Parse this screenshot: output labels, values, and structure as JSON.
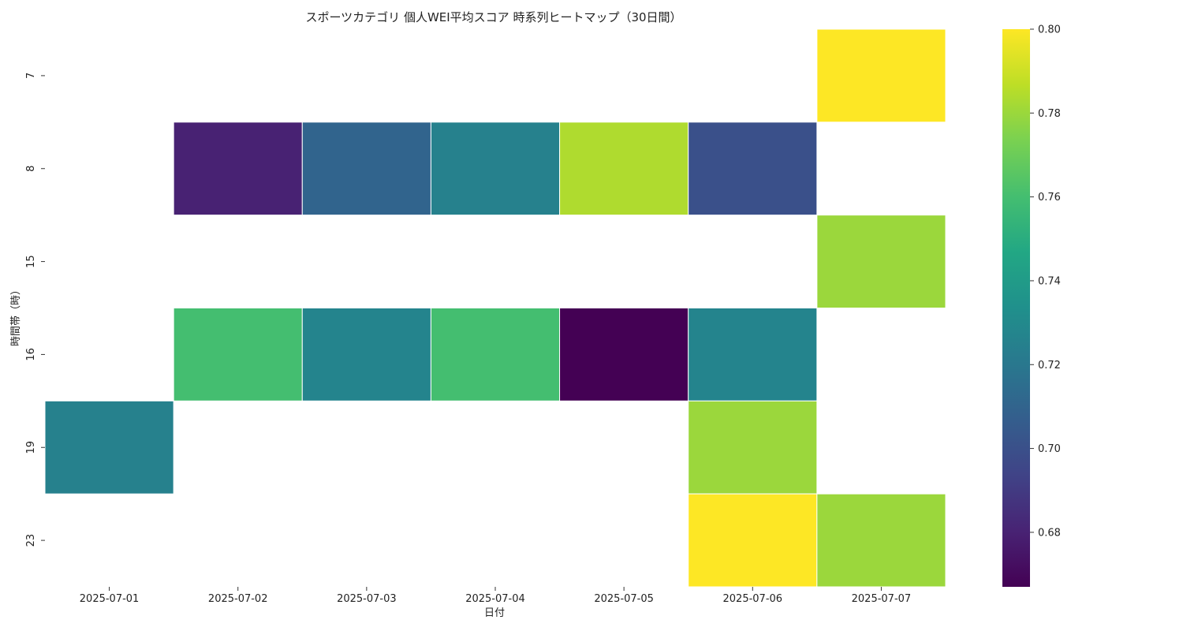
{
  "chart_data": {
    "type": "heatmap",
    "title": "スポーツカテゴリ 個人WEI平均スコア 時系列ヒートマップ（30日間）",
    "xlabel": "日付",
    "ylabel": "時間帯（時）",
    "x_categories": [
      "2025-07-01",
      "2025-07-02",
      "2025-07-03",
      "2025-07-04",
      "2025-07-05",
      "2025-07-06",
      "2025-07-07"
    ],
    "y_categories": [
      "7",
      "8",
      "15",
      "16",
      "19",
      "23"
    ],
    "values": [
      [
        null,
        null,
        null,
        null,
        null,
        null,
        0.8
      ],
      [
        null,
        0.68,
        0.71,
        0.725,
        0.784,
        0.7,
        null
      ],
      [
        null,
        null,
        null,
        null,
        null,
        null,
        0.78
      ],
      [
        null,
        0.76,
        0.727,
        0.76,
        0.667,
        0.727,
        null
      ],
      [
        0.725,
        null,
        null,
        null,
        null,
        0.78,
        null
      ],
      [
        null,
        null,
        null,
        null,
        null,
        0.8,
        0.78
      ]
    ],
    "colorbar": {
      "colormap": "viridis",
      "range": [
        0.667,
        0.8
      ],
      "ticks": [
        0.68,
        0.7,
        0.72,
        0.74,
        0.76,
        0.78,
        0.8
      ],
      "tick_labels": [
        "0.68",
        "0.70",
        "0.72",
        "0.74",
        "0.76",
        "0.78",
        "0.80"
      ]
    },
    "grid": false,
    "cell_border_color": "#ffffff"
  }
}
